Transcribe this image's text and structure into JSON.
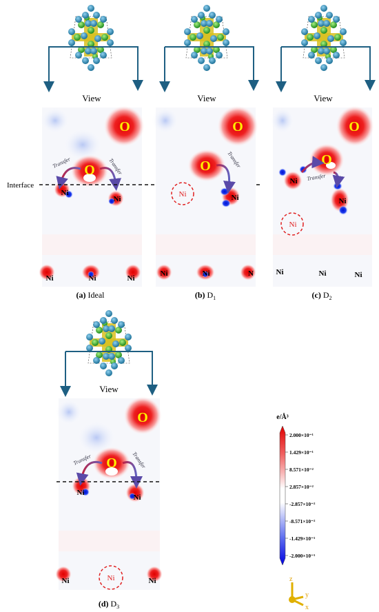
{
  "panels": [
    {
      "id": "a",
      "letter": "(a)",
      "caption": "Ideal",
      "sub": "",
      "view_label": "View",
      "top_o_label": "O",
      "mid_o_label": "O",
      "transfer_left": "Transfer",
      "transfer_right": "Transfer",
      "ni_left": "Ni",
      "ni_right": "Ni",
      "bottom_ni": [
        "Ni",
        "Ni",
        "Ni"
      ],
      "vacancy_label": ""
    },
    {
      "id": "b",
      "letter": "(b)",
      "caption": "D",
      "sub": "1",
      "view_label": "View",
      "top_o_label": "O",
      "mid_o_label": "O",
      "transfer_left": "",
      "transfer_right": "Transfer",
      "ni_left": "",
      "ni_right": "Ni",
      "bottom_ni": [
        "Ni",
        "Ni",
        "N"
      ],
      "vacancy_label": "Ni"
    },
    {
      "id": "c",
      "letter": "(c)",
      "caption": "D",
      "sub": "2",
      "view_label": "View",
      "top_o_label": "O",
      "mid_o_label": "O",
      "transfer_left": "",
      "transfer_right": "Transfer",
      "ni_left": "Ni",
      "ni_right": "Ni",
      "bottom_ni": [
        "Ni",
        "Ni",
        "Ni"
      ],
      "vacancy_label": "Ni"
    },
    {
      "id": "d",
      "letter": "(d)",
      "caption": "D",
      "sub": "3",
      "view_label": "View",
      "top_o_label": "O",
      "mid_o_label": "O",
      "transfer_left": "Transfer",
      "transfer_right": "Transfer",
      "ni_left": "Ni",
      "ni_right": "Ni",
      "bottom_ni": [
        "Ni",
        "Ni"
      ],
      "vacancy_label": "Ni"
    }
  ],
  "interface_label": "Interface",
  "colorbar": {
    "title": "e/Å³",
    "ticks": [
      "2.000×10⁻¹",
      "1.429×10⁻¹",
      "8.571×10⁻²",
      "2.857×10⁻²",
      "-2.857×10⁻²",
      "-8.571×10⁻²",
      "-1.429×10⁻¹",
      "-2.000×10⁻¹"
    ],
    "colors": {
      "positive": "#e01010",
      "neutral": "#ffffff",
      "negative": "#1010e0"
    }
  },
  "axes": {
    "z": "z",
    "y": "y",
    "x": "x"
  },
  "colors": {
    "oxygen_label": "#ffee00",
    "ni_atom": "#1f7fa8",
    "o_atom": "#2faa2a",
    "s_atom": "#d8c020",
    "arrow": "#1e5f82",
    "vacancy": "#e02020"
  }
}
